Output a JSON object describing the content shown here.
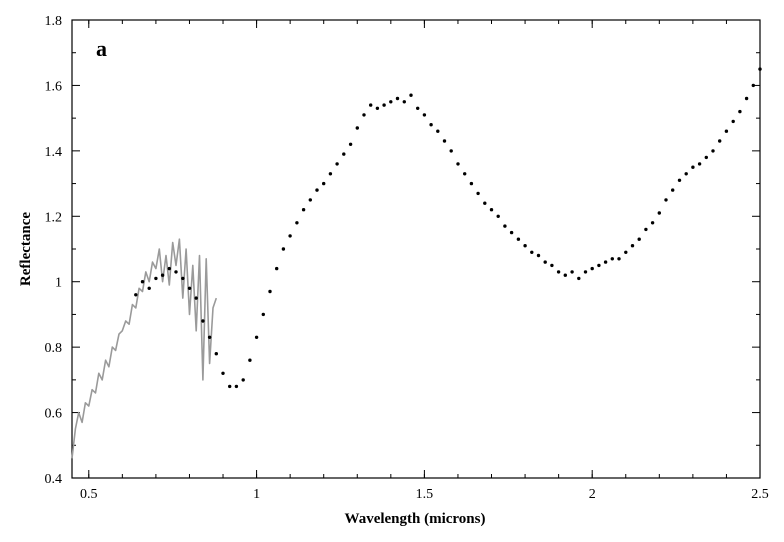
{
  "chart_data": {
    "type": "scatter",
    "panel_label": "a",
    "xlabel": "Wavelength (microns)",
    "ylabel": "Reflectance",
    "xlim": [
      0.45,
      2.5
    ],
    "ylim": [
      0.4,
      1.8
    ],
    "x_ticks": [
      {
        "value": 0.5,
        "label": "0.5"
      },
      {
        "value": 1.0,
        "label": "1"
      },
      {
        "value": 1.5,
        "label": "1.5"
      },
      {
        "value": 2.0,
        "label": "2"
      },
      {
        "value": 2.5,
        "label": "2.5"
      }
    ],
    "y_ticks": [
      {
        "value": 0.4,
        "label": "0.4"
      },
      {
        "value": 0.6,
        "label": "0.6"
      },
      {
        "value": 0.8,
        "label": "0.8"
      },
      {
        "value": 1.0,
        "label": "1"
      },
      {
        "value": 1.2,
        "label": "1.2"
      },
      {
        "value": 1.4,
        "label": "1.4"
      },
      {
        "value": 1.6,
        "label": "1.6"
      },
      {
        "value": 1.8,
        "label": "1.8"
      }
    ],
    "grid": false,
    "colors": {
      "points": "#000000",
      "line": "#9a9a9a",
      "axes": "#000000"
    },
    "series": [
      {
        "style": "line",
        "x": [
          0.45,
          0.46,
          0.47,
          0.48,
          0.49,
          0.5,
          0.51,
          0.52,
          0.53,
          0.54,
          0.55,
          0.56,
          0.57,
          0.58,
          0.59,
          0.6,
          0.61,
          0.62,
          0.63,
          0.64,
          0.65,
          0.66,
          0.67,
          0.68,
          0.69,
          0.7,
          0.71,
          0.72,
          0.73,
          0.74,
          0.75,
          0.76,
          0.77,
          0.78,
          0.79,
          0.8,
          0.81,
          0.82,
          0.83,
          0.84,
          0.85,
          0.86,
          0.87,
          0.88
        ],
        "y": [
          0.46,
          0.55,
          0.6,
          0.57,
          0.63,
          0.62,
          0.67,
          0.66,
          0.72,
          0.7,
          0.76,
          0.74,
          0.8,
          0.79,
          0.84,
          0.85,
          0.88,
          0.87,
          0.93,
          0.92,
          0.98,
          0.97,
          1.03,
          1.0,
          1.06,
          1.04,
          1.1,
          1.0,
          1.08,
          0.99,
          1.12,
          1.05,
          1.13,
          0.95,
          1.1,
          0.9,
          1.05,
          0.85,
          1.08,
          0.7,
          1.07,
          0.75,
          0.92,
          0.95
        ]
      },
      {
        "style": "points",
        "x": [
          0.64,
          0.66,
          0.68,
          0.7,
          0.72,
          0.74,
          0.76,
          0.78,
          0.8,
          0.82,
          0.84,
          0.86,
          0.88,
          0.9,
          0.92,
          0.94,
          0.96,
          0.98,
          1.0,
          1.02,
          1.04,
          1.06,
          1.08,
          1.1,
          1.12,
          1.14,
          1.16,
          1.18,
          1.2,
          1.22,
          1.24,
          1.26,
          1.28,
          1.3,
          1.32,
          1.34,
          1.36,
          1.38,
          1.4,
          1.42,
          1.44,
          1.46,
          1.48,
          1.5,
          1.52,
          1.54,
          1.56,
          1.58,
          1.6,
          1.62,
          1.64,
          1.66,
          1.68,
          1.7,
          1.72,
          1.74,
          1.76,
          1.78,
          1.8,
          1.82,
          1.84,
          1.86,
          1.88,
          1.9,
          1.92,
          1.94,
          1.96,
          1.98,
          2.0,
          2.02,
          2.04,
          2.06,
          2.08,
          2.1,
          2.12,
          2.14,
          2.16,
          2.18,
          2.2,
          2.22,
          2.24,
          2.26,
          2.28,
          2.3,
          2.32,
          2.34,
          2.36,
          2.38,
          2.4,
          2.42,
          2.44,
          2.46,
          2.48,
          2.5
        ],
        "y": [
          0.96,
          1.0,
          0.98,
          1.01,
          1.02,
          1.04,
          1.03,
          1.01,
          0.98,
          0.95,
          0.88,
          0.83,
          0.78,
          0.72,
          0.68,
          0.68,
          0.7,
          0.76,
          0.83,
          0.9,
          0.97,
          1.04,
          1.1,
          1.14,
          1.18,
          1.22,
          1.25,
          1.28,
          1.3,
          1.33,
          1.36,
          1.39,
          1.42,
          1.47,
          1.51,
          1.54,
          1.53,
          1.54,
          1.55,
          1.56,
          1.55,
          1.57,
          1.53,
          1.51,
          1.48,
          1.46,
          1.43,
          1.4,
          1.36,
          1.33,
          1.3,
          1.27,
          1.24,
          1.22,
          1.2,
          1.17,
          1.15,
          1.13,
          1.11,
          1.09,
          1.08,
          1.06,
          1.05,
          1.03,
          1.02,
          1.03,
          1.01,
          1.03,
          1.04,
          1.05,
          1.06,
          1.07,
          1.07,
          1.09,
          1.11,
          1.13,
          1.16,
          1.18,
          1.21,
          1.25,
          1.28,
          1.31,
          1.33,
          1.35,
          1.36,
          1.38,
          1.4,
          1.43,
          1.46,
          1.49,
          1.52,
          1.56,
          1.6,
          1.65
        ]
      }
    ]
  }
}
